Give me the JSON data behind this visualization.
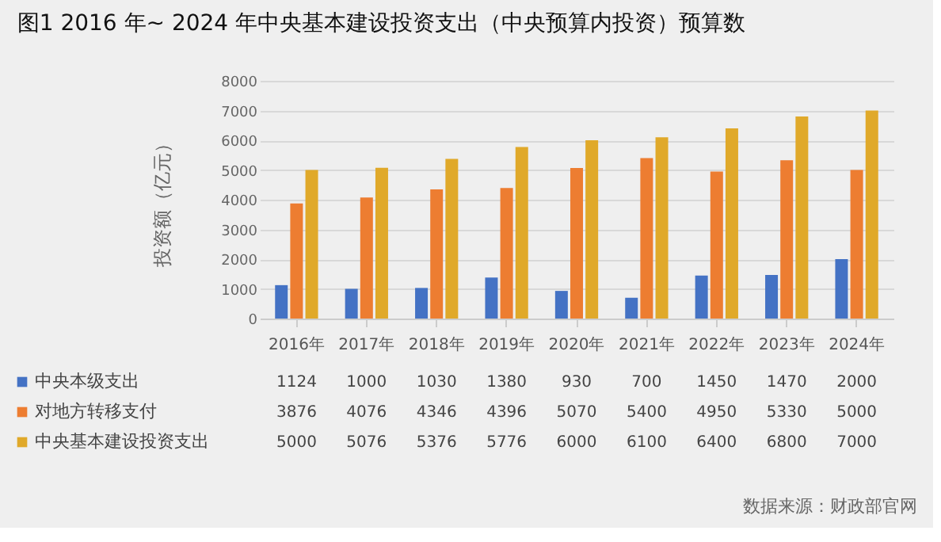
{
  "chart_data": {
    "type": "bar",
    "title": "图1 2016 年~ 2024 年中央基本建设投资支出（中央预算内投资）预算数",
    "ylabel": "投资额（亿元）",
    "categories": [
      "2016年",
      "2017年",
      "2018年",
      "2019年",
      "2020年",
      "2021年",
      "2022年",
      "2023年",
      "2024年"
    ],
    "series": [
      {
        "name": "中央本级支出",
        "color": "#4472c4",
        "values": [
          1124,
          1000,
          1030,
          1380,
          930,
          700,
          1450,
          1470,
          2000
        ]
      },
      {
        "name": "对地方转移支付",
        "color": "#ed7d31",
        "values": [
          3876,
          4076,
          4346,
          4396,
          5070,
          5400,
          4950,
          5330,
          5000
        ]
      },
      {
        "name": "中央基本建设投资支出",
        "color": "#e0a92a",
        "values": [
          5000,
          5076,
          5376,
          5776,
          6000,
          6100,
          6400,
          6800,
          7000
        ]
      }
    ],
    "ylim": [
      0,
      8000
    ],
    "yticks": [
      0,
      1000,
      2000,
      3000,
      4000,
      5000,
      6000,
      7000,
      8000
    ],
    "grid": "y",
    "legend": "bottom",
    "data_labels": true,
    "annotations": [
      "数据来源：财政部官网"
    ]
  }
}
